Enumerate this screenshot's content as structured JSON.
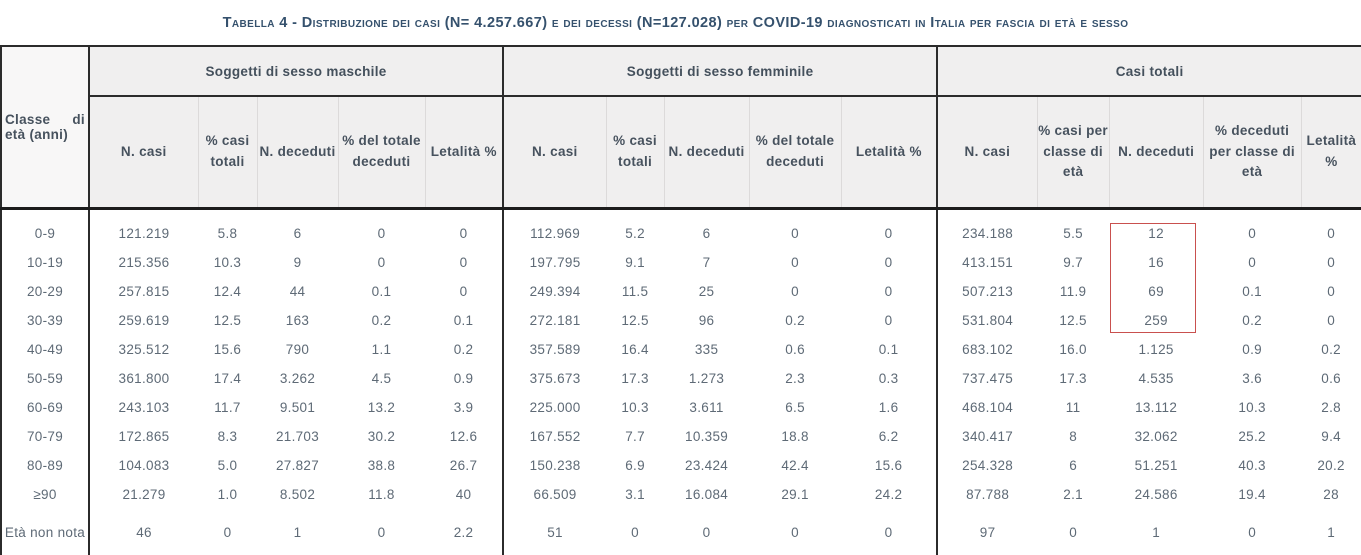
{
  "title": "Tabella 4 - Distribuzione dei casi (N= 4.257.667) e dei decessi (N=127.028) per COVID-19 diagnosticati in Italia per fascia di età e sesso",
  "table": {
    "row_header_line1_left": "Classe",
    "row_header_line1_right": "di",
    "row_header_line2": "età (anni)",
    "groups": [
      {
        "label": "Soggetti di sesso maschile",
        "columns": [
          "N. casi",
          "% casi totali",
          "N. deceduti",
          "% del totale deceduti",
          "Letalità %"
        ]
      },
      {
        "label": "Soggetti di sesso femminile",
        "columns": [
          "N. casi",
          "% casi totali",
          "N. deceduti",
          "% del totale deceduti",
          "Letalità %"
        ]
      },
      {
        "label": "Casi totali",
        "columns": [
          "N. casi",
          "% casi per classe di età",
          "N. deceduti",
          "% deceduti per classe di età",
          "Letalità %"
        ]
      }
    ],
    "rows": [
      {
        "age": "0-9",
        "male": [
          "121.219",
          "5.8",
          "6",
          "0",
          "0"
        ],
        "female": [
          "112.969",
          "5.2",
          "6",
          "0",
          "0"
        ],
        "total": [
          "234.188",
          "5.5",
          "12",
          "0",
          "0"
        ]
      },
      {
        "age": "10-19",
        "male": [
          "215.356",
          "10.3",
          "9",
          "0",
          "0"
        ],
        "female": [
          "197.795",
          "9.1",
          "7",
          "0",
          "0"
        ],
        "total": [
          "413.151",
          "9.7",
          "16",
          "0",
          "0"
        ]
      },
      {
        "age": "20-29",
        "male": [
          "257.815",
          "12.4",
          "44",
          "0.1",
          "0"
        ],
        "female": [
          "249.394",
          "11.5",
          "25",
          "0",
          "0"
        ],
        "total": [
          "507.213",
          "11.9",
          "69",
          "0.1",
          "0"
        ]
      },
      {
        "age": "30-39",
        "male": [
          "259.619",
          "12.5",
          "163",
          "0.2",
          "0.1"
        ],
        "female": [
          "272.181",
          "12.5",
          "96",
          "0.2",
          "0"
        ],
        "total": [
          "531.804",
          "12.5",
          "259",
          "0.2",
          "0"
        ]
      },
      {
        "age": "40-49",
        "male": [
          "325.512",
          "15.6",
          "790",
          "1.1",
          "0.2"
        ],
        "female": [
          "357.589",
          "16.4",
          "335",
          "0.6",
          "0.1"
        ],
        "total": [
          "683.102",
          "16.0",
          "1.125",
          "0.9",
          "0.2"
        ]
      },
      {
        "age": "50-59",
        "male": [
          "361.800",
          "17.4",
          "3.262",
          "4.5",
          "0.9"
        ],
        "female": [
          "375.673",
          "17.3",
          "1.273",
          "2.3",
          "0.3"
        ],
        "total": [
          "737.475",
          "17.3",
          "4.535",
          "3.6",
          "0.6"
        ]
      },
      {
        "age": "60-69",
        "male": [
          "243.103",
          "11.7",
          "9.501",
          "13.2",
          "3.9"
        ],
        "female": [
          "225.000",
          "10.3",
          "3.611",
          "6.5",
          "1.6"
        ],
        "total": [
          "468.104",
          "11",
          "13.112",
          "10.3",
          "2.8"
        ]
      },
      {
        "age": "70-79",
        "male": [
          "172.865",
          "8.3",
          "21.703",
          "30.2",
          "12.6"
        ],
        "female": [
          "167.552",
          "7.7",
          "10.359",
          "18.8",
          "6.2"
        ],
        "total": [
          "340.417",
          "8",
          "32.062",
          "25.2",
          "9.4"
        ]
      },
      {
        "age": "80-89",
        "male": [
          "104.083",
          "5.0",
          "27.827",
          "38.8",
          "26.7"
        ],
        "female": [
          "150.238",
          "6.9",
          "23.424",
          "42.4",
          "15.6"
        ],
        "total": [
          "254.328",
          "6",
          "51.251",
          "40.3",
          "20.2"
        ]
      },
      {
        "age": "≥90",
        "male": [
          "21.279",
          "1.0",
          "8.502",
          "11.8",
          "40"
        ],
        "female": [
          "66.509",
          "3.1",
          "16.084",
          "29.1",
          "24.2"
        ],
        "total": [
          "87.788",
          "2.1",
          "24.586",
          "19.4",
          "28"
        ]
      },
      {
        "age": "Età non nota",
        "male": [
          "46",
          "0",
          "1",
          "0",
          "2.2"
        ],
        "female": [
          "51",
          "0",
          "0",
          "0",
          "0"
        ],
        "total": [
          "97",
          "0",
          "1",
          "0",
          "1"
        ]
      }
    ],
    "highlight_color": "#c9504e"
  }
}
